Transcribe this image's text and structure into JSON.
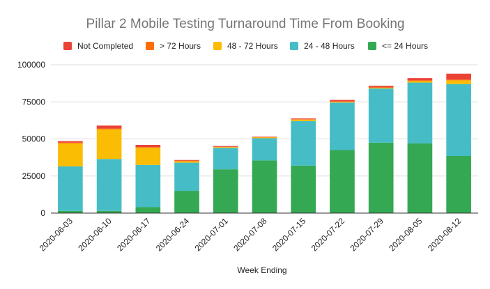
{
  "chart_data": {
    "type": "bar",
    "stacked": true,
    "title": "Pillar 2 Mobile Testing Turnaround Time From Booking",
    "xlabel": "Week Ending",
    "ylabel": "",
    "ylim": [
      0,
      100000
    ],
    "yticks": [
      0,
      25000,
      50000,
      75000,
      100000
    ],
    "ytick_labels": [
      "0",
      "25000",
      "50000",
      "75000",
      "100000"
    ],
    "grid": true,
    "legend_position": "top",
    "categories": [
      "2020-06-03",
      "2020-06-10",
      "2020-06-17",
      "2020-06-24",
      "2020-07-01",
      "2020-07-08",
      "2020-07-15",
      "2020-07-22",
      "2020-07-29",
      "2020-08-05",
      "2020-08-12"
    ],
    "series": [
      {
        "name": "<= 24 Hours",
        "color": "#34a853",
        "values": [
          1500,
          1500,
          4000,
          15000,
          29500,
          35500,
          32000,
          42500,
          47500,
          47000,
          38500
        ]
      },
      {
        "name": "24 - 48 Hours",
        "color": "#46bdc6",
        "values": [
          30000,
          35000,
          28500,
          19000,
          14500,
          15000,
          30000,
          32000,
          36500,
          41000,
          48500
        ]
      },
      {
        "name": "48 - 72 Hours",
        "color": "#fbbc04",
        "values": [
          15500,
          20000,
          11500,
          1000,
          500,
          500,
          1000,
          500,
          500,
          1000,
          2500
        ]
      },
      {
        "name": "> 72 Hours",
        "color": "#ff6d01",
        "values": [
          500,
          500,
          500,
          300,
          200,
          200,
          300,
          300,
          300,
          500,
          500
        ]
      },
      {
        "name": "Not Completed",
        "color": "#ea4335",
        "values": [
          1000,
          2000,
          1500,
          500,
          500,
          300,
          500,
          1000,
          1000,
          1500,
          4000
        ]
      }
    ],
    "legend_order": [
      "Not Completed",
      "> 72 Hours",
      "48 - 72 Hours",
      "24 - 48 Hours",
      "<= 24 Hours"
    ]
  }
}
